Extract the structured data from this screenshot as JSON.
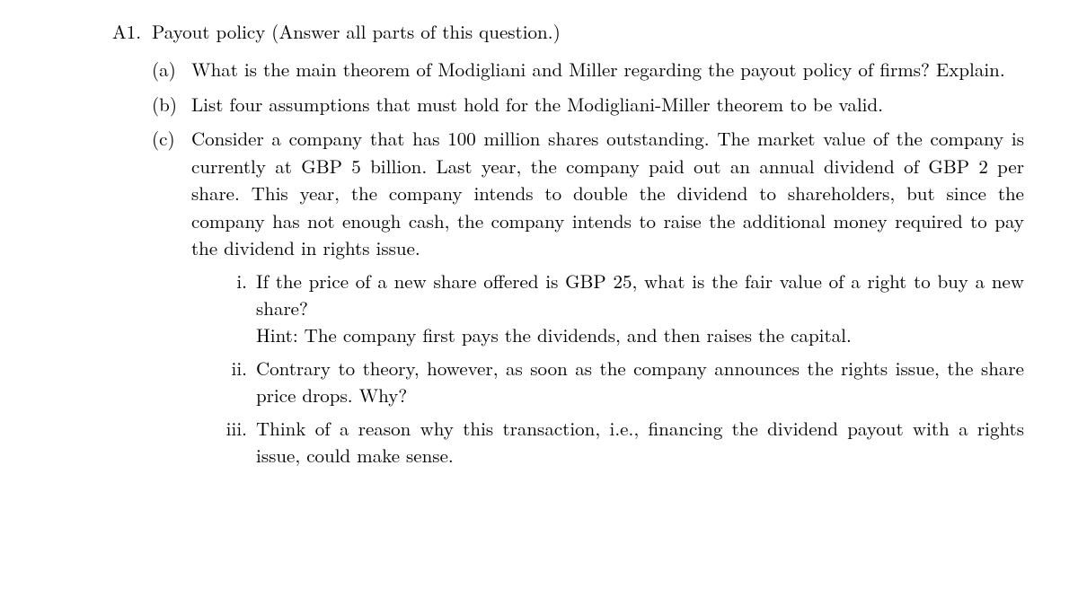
{
  "typography": {
    "font_family": "Latin Modern Roman / Computer Modern serif",
    "base_fontsize_pt": 16,
    "line_height": 1.45,
    "text_color": "#000000",
    "background_color": "#ffffff",
    "justify": true
  },
  "question": {
    "label": "A1.",
    "title": "Payout policy (Answer all parts of this question.)"
  },
  "parts": {
    "a": {
      "label": "(a)",
      "text": "What is the main theorem of Modigliani and Miller regarding the payout policy of firms? Explain."
    },
    "b": {
      "label": "(b)",
      "text": "List four assumptions that must hold for the Modigliani-Miller theorem to be valid."
    },
    "c": {
      "label": "(c)",
      "intro": "Consider a company that has 100 million shares outstanding. The market value of the company is currently at GBP 5 billion. Last year, the company paid out an annual dividend of GBP 2 per share. This year, the company intends to double the dividend to shareholders, but since the company has not enough cash, the company intends to raise the additional money required to pay the dividend in rights issue.",
      "items": {
        "i": {
          "label": "i.",
          "text": "If the price of a new share offered is GBP 25, what is the fair value of a right to buy a new share?",
          "hint": "Hint: The company first pays the dividends, and then raises the capital."
        },
        "ii": {
          "label": "ii.",
          "text": "Contrary to theory, however, as soon as the company announces the rights issue, the share price drops. Why?"
        },
        "iii": {
          "label": "iii.",
          "text": "Think of a reason why this transaction, i.e., financing the dividend payout with a rights issue, could make sense."
        }
      }
    }
  }
}
